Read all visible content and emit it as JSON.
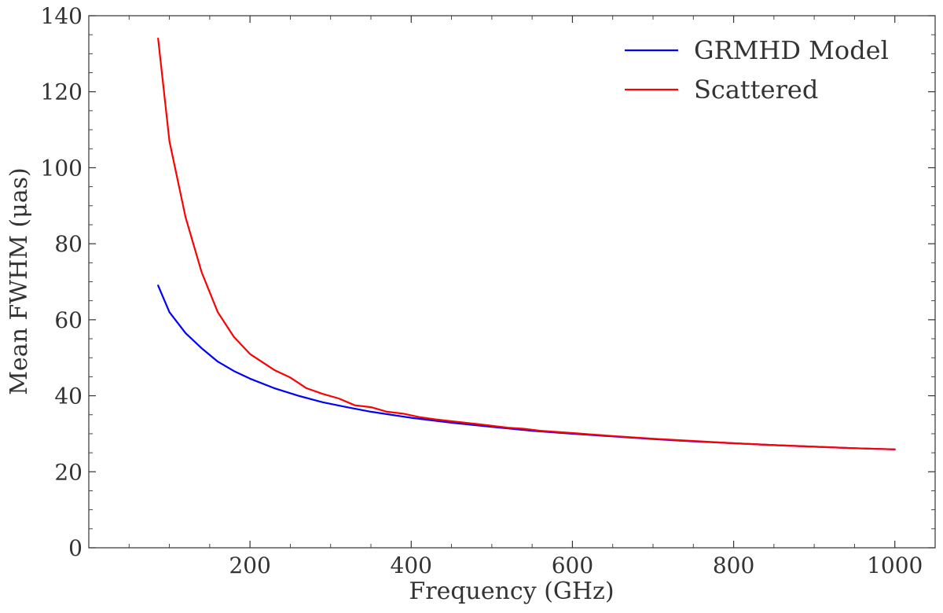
{
  "chart_data": {
    "type": "line",
    "title": "",
    "xlabel": "Frequency (GHz)",
    "ylabel": "Mean FWHM (μas)",
    "xlim": [
      0,
      1050
    ],
    "ylim": [
      0,
      140
    ],
    "xticks": [
      200,
      400,
      600,
      800,
      1000
    ],
    "yticks": [
      0,
      20,
      40,
      60,
      80,
      100,
      120,
      140
    ],
    "grid": false,
    "legend_position": "top-right",
    "series": [
      {
        "name": "GRMHD Model",
        "color": "#0000ff",
        "x": [
          86,
          100,
          120,
          140,
          160,
          180,
          200,
          230,
          260,
          290,
          320,
          350,
          400,
          450,
          500,
          550,
          600,
          650,
          700,
          750,
          800,
          850,
          900,
          950,
          1000
        ],
        "y": [
          69.0,
          62.0,
          56.5,
          52.5,
          49.0,
          46.5,
          44.5,
          42.0,
          40.0,
          38.3,
          37.0,
          35.8,
          34.2,
          32.9,
          31.8,
          30.8,
          30.0,
          29.3,
          28.6,
          28.0,
          27.5,
          27.0,
          26.6,
          26.2,
          25.9
        ]
      },
      {
        "name": "Scattered",
        "color": "#ff0000",
        "x": [
          86,
          100,
          120,
          140,
          160,
          180,
          200,
          230,
          250,
          270,
          290,
          310,
          330,
          350,
          370,
          390,
          410,
          430,
          450,
          480,
          520,
          540,
          560,
          600,
          650,
          700,
          750,
          800,
          850,
          900,
          950,
          1000
        ],
        "y": [
          134.0,
          107.0,
          87.0,
          72.5,
          62.0,
          55.5,
          51.0,
          46.8,
          44.8,
          42.0,
          40.5,
          39.3,
          37.5,
          37.0,
          35.8,
          35.3,
          34.4,
          33.8,
          33.3,
          32.6,
          31.6,
          31.3,
          30.8,
          30.2,
          29.4,
          28.7,
          28.1,
          27.5,
          27.0,
          26.6,
          26.2,
          25.9
        ]
      }
    ]
  }
}
